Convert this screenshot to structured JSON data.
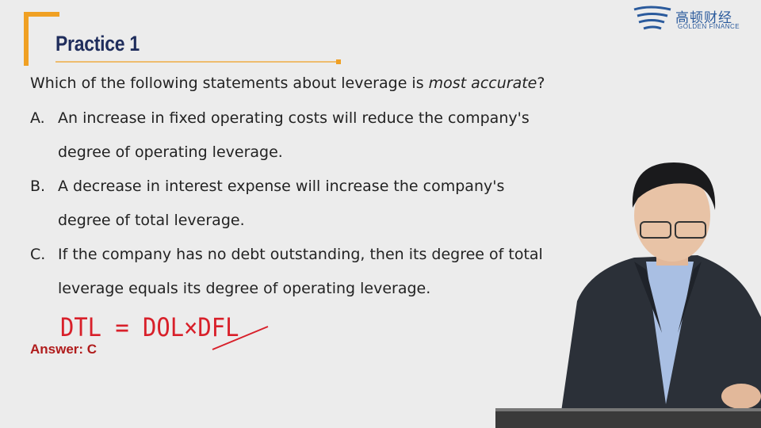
{
  "header": {
    "title": "Practice 1"
  },
  "logo": {
    "name": "高顿财经",
    "subtitle": "GOLDEN FINANCE"
  },
  "question": {
    "before": "Which of the following statements about leverage is ",
    "emphasis": "most accurate",
    "after": "?"
  },
  "options": [
    {
      "label": "A.",
      "text": "An increase in fixed operating costs will reduce the company's degree of operating leverage."
    },
    {
      "label": "B.",
      "text": "A decrease in interest expense will increase the company's degree of total leverage."
    },
    {
      "label": "C.",
      "text": "If the company has no debt outstanding, then its degree of total leverage equals its degree of operating leverage."
    }
  ],
  "answer": "Answer: C",
  "annotation": {
    "left": "DTL = DOL×",
    "struck": "DFL"
  }
}
